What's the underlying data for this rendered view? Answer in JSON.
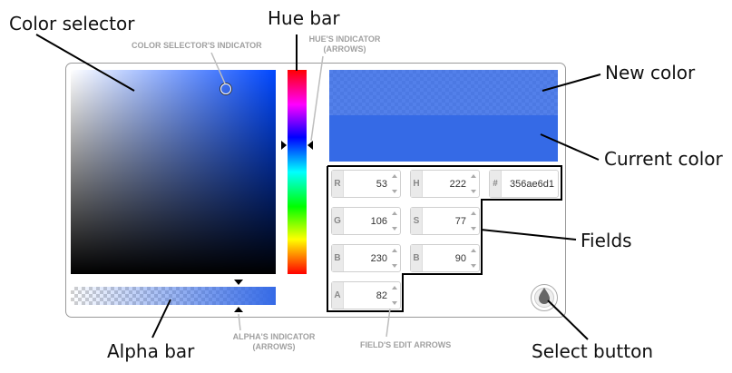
{
  "labels": {
    "color_selector": "Color selector",
    "hue_bar": "Hue bar",
    "new_color": "New color",
    "current_color": "Current color",
    "fields": "Fields",
    "alpha_bar": "Alpha bar",
    "select_button": "Select button"
  },
  "small_labels": {
    "color_selector_indicator": "COLOR SELECTOR'S INDICATOR",
    "hue_indicator_line1": "HUE'S INDICATOR",
    "hue_indicator_line2": "(ARROWS)",
    "alpha_indicator_line1": "ALPHA'S INDICATOR",
    "alpha_indicator_line2": "(ARROWS)",
    "field_edit_arrows": "FIELD'S EDIT ARROWS"
  },
  "fields": {
    "r": {
      "label": "R",
      "value": "53"
    },
    "g": {
      "label": "G",
      "value": "106"
    },
    "b": {
      "label": "B",
      "value": "230"
    },
    "a": {
      "label": "A",
      "value": "82"
    },
    "h": {
      "label": "H",
      "value": "222"
    },
    "s": {
      "label": "S",
      "value": "77"
    },
    "v": {
      "label": "B",
      "value": "90"
    },
    "hex": {
      "label": "#",
      "value": "356ae6d1"
    }
  },
  "colors": {
    "current": "#356ae6",
    "hue_base": "#0047ff"
  },
  "icons": {
    "select_button": "droplet-icon",
    "arrows": "triangle-arrow-icon"
  }
}
